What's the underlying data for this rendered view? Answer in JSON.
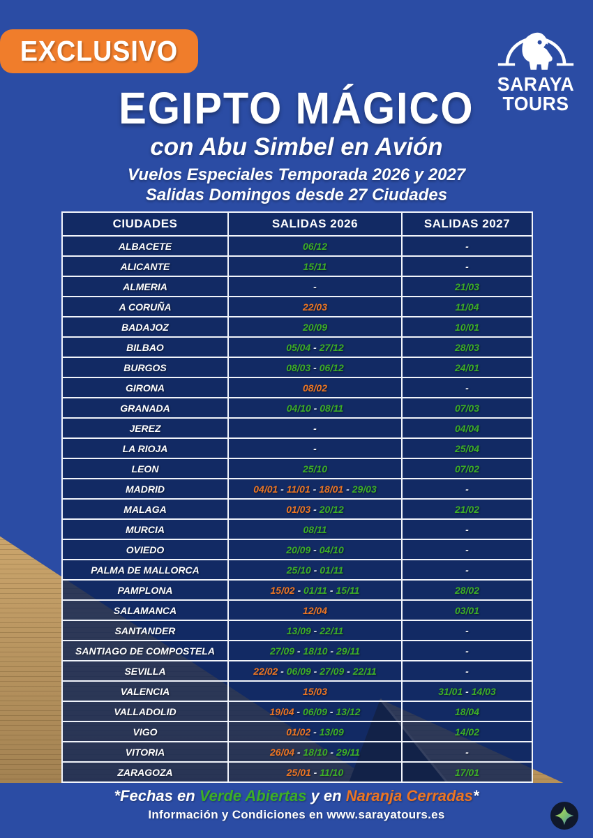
{
  "badge_label": "EXCLUSIVO",
  "logo": {
    "name_top": "SARAYA",
    "name_bottom": "TOURS",
    "icon": "horus-falcon-arch-icon"
  },
  "header": {
    "title": "EGIPTO MÁGICO",
    "subtitle": "con Abu Simbel en Avión",
    "flights_line": "Vuelos Especiales Temporada 2026 y 2027",
    "departures_line": "Salidas Domingos desde 27 Ciudades"
  },
  "table": {
    "columns": [
      "CIUDADES",
      "SALIDAS 2026",
      "SALIDAS 2027"
    ],
    "rows": [
      {
        "city": "ALBACETE",
        "salidas_2026": [
          {
            "text": "06/12",
            "status": "open"
          }
        ],
        "salidas_2027": [
          {
            "text": "-",
            "status": "none"
          }
        ]
      },
      {
        "city": "ALICANTE",
        "salidas_2026": [
          {
            "text": "15/11",
            "status": "open"
          }
        ],
        "salidas_2027": [
          {
            "text": "-",
            "status": "none"
          }
        ]
      },
      {
        "city": "ALMERIA",
        "salidas_2026": [
          {
            "text": "-",
            "status": "none"
          }
        ],
        "salidas_2027": [
          {
            "text": "21/03",
            "status": "open"
          }
        ]
      },
      {
        "city": "A CORUÑA",
        "salidas_2026": [
          {
            "text": "22/03",
            "status": "closed"
          }
        ],
        "salidas_2027": [
          {
            "text": "11/04",
            "status": "open"
          }
        ]
      },
      {
        "city": "BADAJOZ",
        "salidas_2026": [
          {
            "text": "20/09",
            "status": "open"
          }
        ],
        "salidas_2027": [
          {
            "text": "10/01",
            "status": "open"
          }
        ]
      },
      {
        "city": "BILBAO",
        "salidas_2026": [
          {
            "text": "05/04",
            "status": "open"
          },
          {
            "text": "27/12",
            "status": "open"
          }
        ],
        "salidas_2027": [
          {
            "text": "28/03",
            "status": "open"
          }
        ]
      },
      {
        "city": "BURGOS",
        "salidas_2026": [
          {
            "text": "08/03",
            "status": "open"
          },
          {
            "text": "06/12",
            "status": "open"
          }
        ],
        "salidas_2027": [
          {
            "text": "24/01",
            "status": "open"
          }
        ]
      },
      {
        "city": "GIRONA",
        "salidas_2026": [
          {
            "text": "08/02",
            "status": "closed"
          }
        ],
        "salidas_2027": [
          {
            "text": "-",
            "status": "none"
          }
        ]
      },
      {
        "city": "GRANADA",
        "salidas_2026": [
          {
            "text": "04/10",
            "status": "open"
          },
          {
            "text": "08/11",
            "status": "open"
          }
        ],
        "salidas_2027": [
          {
            "text": "07/03",
            "status": "open"
          }
        ]
      },
      {
        "city": "JEREZ",
        "salidas_2026": [
          {
            "text": "-",
            "status": "none"
          }
        ],
        "salidas_2027": [
          {
            "text": "04/04",
            "status": "open"
          }
        ]
      },
      {
        "city": "LA RIOJA",
        "salidas_2026": [
          {
            "text": "-",
            "status": "none"
          }
        ],
        "salidas_2027": [
          {
            "text": "25/04",
            "status": "open"
          }
        ]
      },
      {
        "city": "LEON",
        "salidas_2026": [
          {
            "text": "25/10",
            "status": "open"
          }
        ],
        "salidas_2027": [
          {
            "text": "07/02",
            "status": "open"
          }
        ]
      },
      {
        "city": "MADRID",
        "salidas_2026": [
          {
            "text": "04/01",
            "status": "closed"
          },
          {
            "text": "11/01",
            "status": "closed"
          },
          {
            "text": "18/01",
            "status": "closed"
          },
          {
            "text": "29/03",
            "status": "open"
          }
        ],
        "salidas_2027": [
          {
            "text": "-",
            "status": "none"
          }
        ]
      },
      {
        "city": "MALAGA",
        "salidas_2026": [
          {
            "text": "01/03",
            "status": "closed"
          },
          {
            "text": "20/12",
            "status": "open"
          }
        ],
        "salidas_2027": [
          {
            "text": "21/02",
            "status": "open"
          }
        ]
      },
      {
        "city": "MURCIA",
        "salidas_2026": [
          {
            "text": "08/11",
            "status": "open"
          }
        ],
        "salidas_2027": [
          {
            "text": "-",
            "status": "none"
          }
        ]
      },
      {
        "city": "OVIEDO",
        "salidas_2026": [
          {
            "text": "20/09",
            "status": "open"
          },
          {
            "text": "04/10",
            "status": "open"
          }
        ],
        "salidas_2027": [
          {
            "text": "-",
            "status": "none"
          }
        ]
      },
      {
        "city": "PALMA DE MALLORCA",
        "salidas_2026": [
          {
            "text": "25/10",
            "status": "open"
          },
          {
            "text": "01/11",
            "status": "open"
          }
        ],
        "salidas_2027": [
          {
            "text": "-",
            "status": "none"
          }
        ]
      },
      {
        "city": "PAMPLONA",
        "salidas_2026": [
          {
            "text": "15/02",
            "status": "closed"
          },
          {
            "text": "01/11",
            "status": "open"
          },
          {
            "text": "15/11",
            "status": "open"
          }
        ],
        "salidas_2027": [
          {
            "text": "28/02",
            "status": "open"
          }
        ]
      },
      {
        "city": "SALAMANCA",
        "salidas_2026": [
          {
            "text": "12/04",
            "status": "closed"
          }
        ],
        "salidas_2027": [
          {
            "text": "03/01",
            "status": "open"
          }
        ]
      },
      {
        "city": "SANTANDER",
        "salidas_2026": [
          {
            "text": "13/09",
            "status": "open"
          },
          {
            "text": "22/11",
            "status": "open"
          }
        ],
        "salidas_2027": [
          {
            "text": "-",
            "status": "none"
          }
        ]
      },
      {
        "city": "SANTIAGO DE COMPOSTELA",
        "salidas_2026": [
          {
            "text": "27/09",
            "status": "open"
          },
          {
            "text": "18/10",
            "status": "open"
          },
          {
            "text": "29/11",
            "status": "open"
          }
        ],
        "salidas_2027": [
          {
            "text": "-",
            "status": "none"
          }
        ]
      },
      {
        "city": "SEVILLA",
        "salidas_2026": [
          {
            "text": "22/02",
            "status": "closed"
          },
          {
            "text": "06/09",
            "status": "open"
          },
          {
            "text": "27/09",
            "status": "open"
          },
          {
            "text": "22/11",
            "status": "open"
          }
        ],
        "salidas_2027": [
          {
            "text": "-",
            "status": "none"
          }
        ]
      },
      {
        "city": "VALENCIA",
        "salidas_2026": [
          {
            "text": "15/03",
            "status": "closed"
          }
        ],
        "salidas_2027": [
          {
            "text": "31/01",
            "status": "open"
          },
          {
            "text": "14/03",
            "status": "open"
          }
        ]
      },
      {
        "city": "VALLADOLID",
        "salidas_2026": [
          {
            "text": "19/04",
            "status": "closed"
          },
          {
            "text": "06/09",
            "status": "open"
          },
          {
            "text": "13/12",
            "status": "open"
          }
        ],
        "salidas_2027": [
          {
            "text": "18/04",
            "status": "open"
          }
        ]
      },
      {
        "city": "VIGO",
        "salidas_2026": [
          {
            "text": "01/02",
            "status": "closed"
          },
          {
            "text": "13/09",
            "status": "open"
          }
        ],
        "salidas_2027": [
          {
            "text": "14/02",
            "status": "open"
          }
        ]
      },
      {
        "city": "VITORIA",
        "salidas_2026": [
          {
            "text": "26/04",
            "status": "closed"
          },
          {
            "text": "18/10",
            "status": "open"
          },
          {
            "text": "29/11",
            "status": "open"
          }
        ],
        "salidas_2027": [
          {
            "text": "-",
            "status": "none"
          }
        ]
      },
      {
        "city": "ZARAGOZA",
        "salidas_2026": [
          {
            "text": "25/01",
            "status": "closed"
          },
          {
            "text": "11/10",
            "status": "open"
          }
        ],
        "salidas_2027": [
          {
            "text": "17/01",
            "status": "open"
          }
        ]
      }
    ]
  },
  "footer": {
    "legend_segments": [
      {
        "text": "*Fechas en ",
        "color": "white"
      },
      {
        "text": "Verde Abiertas",
        "color": "green"
      },
      {
        "text": " y en ",
        "color": "white"
      },
      {
        "text": "Naranja Cerradas",
        "color": "orange"
      },
      {
        "text": "*",
        "color": "white"
      }
    ],
    "info": "Información y Condiciones en www.sarayatours.es"
  },
  "colors": {
    "background": "#2B4CA4",
    "badge_orange": "#F07D2B",
    "green": "#3DAE27",
    "orange": "#EB7524",
    "dash": "#FFFFFF",
    "cell_navy": "#16306E",
    "grid_white": "#F2F5FB",
    "sand": "#C9A166",
    "sand_dark": "#9A7A4C",
    "pyramid_shadow": "#281E10"
  }
}
